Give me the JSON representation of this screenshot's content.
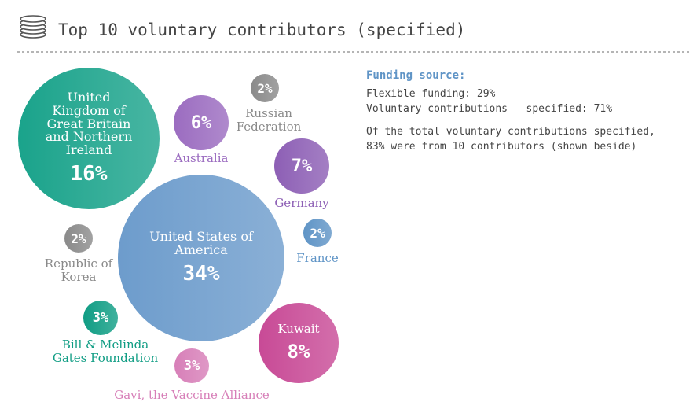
{
  "header": {
    "title": "Top 10 voluntary contributors (specified)",
    "icon": "coins-stack-icon"
  },
  "info": {
    "heading": "Funding source:",
    "lines": [
      "Flexible funding: 29%",
      "Voluntary contributions – specified: 71%"
    ],
    "note_lines": [
      "Of the total voluntary contributions specified,",
      "83% were from 10 contributors (shown beside)"
    ]
  },
  "chart_data": {
    "type": "bubble",
    "unit": "%",
    "series": [
      {
        "name": "United Kingdom of Great Britain and Northern Ireland",
        "value": 16,
        "display": "16%",
        "label": "United\nKingdom of\nGreat Britain\nand Northern\nIreland",
        "color": "#1aa38b"
      },
      {
        "name": "United States of America",
        "value": 34,
        "display": "34%",
        "label": "United States of\nAmerica",
        "color": "#6d9ccc"
      },
      {
        "name": "Australia",
        "value": 6,
        "display": "6%",
        "label": "Australia",
        "color": "#9b6cc0"
      },
      {
        "name": "Russian Federation",
        "value": 2,
        "display": "2%",
        "label": "Russian\nFederation",
        "color": "#8a8a8a"
      },
      {
        "name": "Germany",
        "value": 7,
        "display": "7%",
        "label": "Germany",
        "color": "#8d5fb5"
      },
      {
        "name": "France",
        "value": 2,
        "display": "2%",
        "label": "France",
        "color": "#5f94c6"
      },
      {
        "name": "Republic of Korea",
        "value": 2,
        "display": "2%",
        "label": "Republic of\nKorea",
        "color": "#8a8a8a"
      },
      {
        "name": "Bill & Melinda Gates Foundation",
        "value": 3,
        "display": "3%",
        "label": "Bill & Melinda\nGates Foundation",
        "color": "#109d84"
      },
      {
        "name": "Gavi, the Vaccine Alliance",
        "value": 3,
        "display": "3%",
        "label": "Gavi, the Vaccine Alliance",
        "color": "#d77fb8"
      },
      {
        "name": "Kuwait",
        "value": 8,
        "display": "8%",
        "label": "Kuwait",
        "color": "#c84a96"
      }
    ]
  }
}
